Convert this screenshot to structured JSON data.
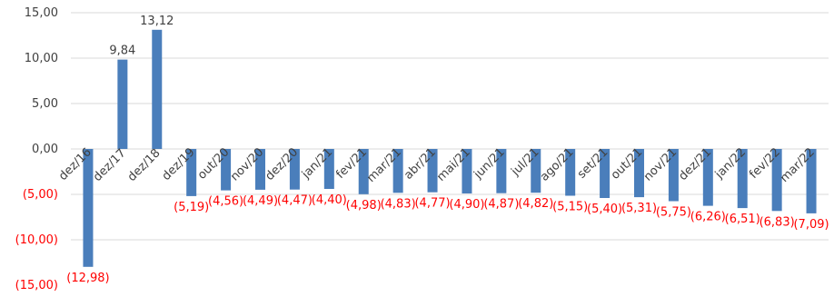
{
  "chart_data": {
    "type": "bar",
    "categories": [
      "dez/16",
      "dez/17",
      "dez/18",
      "dez/19",
      "out/20",
      "nov/20",
      "dez/20",
      "jan/21",
      "fev/21",
      "mar/21",
      "abr/21",
      "mai/21",
      "jun/21",
      "jul/21",
      "ago/21",
      "set/21",
      "out/21",
      "nov/21",
      "dez/21",
      "jan/22",
      "fev/22",
      "mar/22"
    ],
    "values": [
      -12.98,
      9.84,
      13.12,
      -5.19,
      -4.56,
      -4.49,
      -4.47,
      -4.4,
      -4.98,
      -4.83,
      -4.77,
      -4.9,
      -4.87,
      -4.82,
      -5.15,
      -5.4,
      -5.31,
      -5.75,
      -6.26,
      -6.51,
      -6.83,
      -7.09
    ],
    "data_labels": [
      "(12,98)",
      "9,84",
      "13,12",
      "(5,19)",
      "(4,56)",
      "(4,49)",
      "(4,47)",
      "(4,40)",
      "(4,98)",
      "(4,83)",
      "(4,77)",
      "(4,90)",
      "(4,87)",
      "(4,82)",
      "(5,15)",
      "(5,40)",
      "(5,31)",
      "(5,75)",
      "(6,26)",
      "(6,51)",
      "(6,83)",
      "(7,09)"
    ],
    "y_ticks": [
      15,
      10,
      5,
      0,
      -5,
      -10,
      -15
    ],
    "y_tick_labels": [
      "15,00",
      "10,00",
      "5,00",
      "0,00",
      "(5,00)",
      "(10,00)",
      "(15,00)"
    ],
    "ylim": [
      -15,
      15
    ],
    "grid": true,
    "colors": {
      "bar": "#4a7ebb",
      "grid": "#d9d9d9",
      "positive_text": "#404040",
      "negative_text": "#ff0000"
    }
  }
}
